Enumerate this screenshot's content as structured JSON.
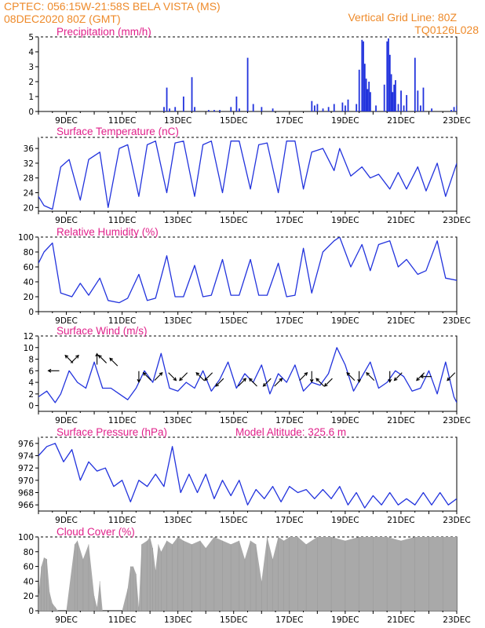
{
  "header": {
    "left_line1": "CPTEC:   056:15W-21:58S  BELA VISTA (MS)",
    "left_line2": "08DEC2020 80Z (GMT)",
    "right_line1": "Vertical Grid Line: 80Z",
    "right_line2": "TQ0126L028"
  },
  "colors": {
    "header": "#ee8a2a",
    "panel_title": "#e0208a",
    "series_line": "#2233dd",
    "cloud_fill": "#a9a9a9",
    "wind_arrow": "#000000"
  },
  "chart_data": [
    {
      "type": "bar",
      "title": "Precipitation (mm/h)",
      "x_tick_labels": [
        "9DEC",
        "11DEC",
        "13DEC",
        "15DEC",
        "17DEC",
        "19DEC",
        "21DEC",
        "23DEC"
      ],
      "x_range_days": [
        8.0,
        23.0
      ],
      "ylim": [
        0,
        5
      ],
      "y_ticks": [
        0,
        1,
        2,
        3,
        4,
        5
      ],
      "x": [
        12.5,
        12.6,
        12.7,
        12.9,
        13.2,
        13.5,
        13.6,
        14.1,
        14.3,
        14.5,
        14.9,
        15.1,
        15.2,
        15.5,
        15.7,
        16.0,
        16.4,
        17.8,
        17.9,
        18.0,
        18.2,
        18.4,
        18.6,
        18.9,
        19.0,
        19.1,
        19.4,
        19.5,
        19.6,
        19.65,
        19.7,
        19.75,
        19.8,
        19.85,
        19.9,
        20.1,
        20.4,
        20.5,
        20.55,
        20.6,
        20.65,
        20.7,
        20.75,
        20.8,
        20.9,
        21.0,
        21.1,
        21.2,
        21.5,
        21.6,
        21.7,
        21.8,
        22.1,
        22.8,
        22.9,
        23.0
      ],
      "values": [
        0.3,
        1.6,
        0.2,
        0.3,
        1.0,
        2.3,
        0.3,
        0.1,
        0.1,
        0.1,
        0.3,
        1.0,
        0.2,
        3.6,
        0.5,
        0.3,
        0.2,
        0.7,
        0.4,
        0.5,
        0.2,
        0.3,
        0.5,
        0.6,
        0.4,
        0.8,
        0.5,
        2.8,
        4.8,
        4.7,
        3.2,
        2.2,
        1.5,
        2.0,
        1.3,
        0.4,
        1.8,
        4.7,
        4.9,
        3.8,
        2.5,
        1.3,
        1.8,
        2.1,
        0.5,
        1.4,
        0.4,
        1.1,
        3.6,
        1.4,
        0.4,
        1.6,
        0.2,
        0.1,
        0.3,
        0.4
      ]
    },
    {
      "type": "line",
      "title": "Surface Temperature (nC)",
      "x_tick_labels": [
        "9DEC",
        "11DEC",
        "13DEC",
        "15DEC",
        "17DEC",
        "19DEC",
        "21DEC",
        "23DEC"
      ],
      "x_range_days": [
        8.0,
        23.0
      ],
      "ylim": [
        19,
        39
      ],
      "y_ticks": [
        20,
        24,
        28,
        32,
        36
      ],
      "x": [
        8.0,
        8.2,
        8.5,
        8.8,
        9.1,
        9.5,
        9.8,
        10.2,
        10.5,
        10.9,
        11.2,
        11.6,
        11.9,
        12.2,
        12.6,
        12.9,
        13.2,
        13.6,
        13.9,
        14.2,
        14.6,
        14.9,
        15.2,
        15.6,
        15.9,
        16.2,
        16.6,
        16.9,
        17.2,
        17.5,
        17.8,
        18.2,
        18.6,
        18.8,
        19.2,
        19.6,
        19.9,
        20.2,
        20.6,
        20.9,
        21.2,
        21.6,
        21.9,
        22.3,
        22.6,
        23.0
      ],
      "values": [
        23,
        20.5,
        19.5,
        31,
        33,
        22,
        33,
        35,
        20,
        36,
        37,
        23,
        37,
        38,
        24,
        37.5,
        38,
        23,
        37,
        38,
        24,
        38,
        38,
        25,
        37,
        37.5,
        24,
        38,
        38,
        25,
        35,
        36,
        30,
        36,
        28.5,
        31,
        28,
        29,
        25,
        29.5,
        25,
        31,
        24.5,
        32,
        23,
        32
      ]
    },
    {
      "type": "line",
      "title": "Relative Humidity (%)",
      "x_tick_labels": [
        "9DEC",
        "11DEC",
        "13DEC",
        "15DEC",
        "17DEC",
        "19DEC",
        "21DEC",
        "23DEC"
      ],
      "x_range_days": [
        8.0,
        23.0
      ],
      "ylim": [
        0,
        100
      ],
      "y_ticks": [
        0,
        20,
        40,
        60,
        80,
        100
      ],
      "x": [
        8.0,
        8.2,
        8.5,
        8.8,
        9.2,
        9.5,
        9.8,
        10.2,
        10.5,
        10.9,
        11.2,
        11.6,
        11.9,
        12.2,
        12.6,
        12.9,
        13.2,
        13.6,
        13.9,
        14.2,
        14.6,
        14.9,
        15.2,
        15.6,
        15.9,
        16.2,
        16.6,
        16.9,
        17.2,
        17.5,
        17.8,
        18.2,
        18.6,
        18.8,
        19.2,
        19.6,
        19.9,
        20.2,
        20.6,
        20.9,
        21.2,
        21.6,
        21.9,
        22.3,
        22.6,
        23.0
      ],
      "values": [
        65,
        80,
        92,
        25,
        20,
        38,
        22,
        45,
        15,
        12,
        18,
        50,
        15,
        18,
        75,
        20,
        20,
        62,
        20,
        22,
        70,
        22,
        22,
        70,
        22,
        22,
        65,
        20,
        22,
        85,
        25,
        80,
        95,
        100,
        60,
        90,
        55,
        90,
        95,
        60,
        70,
        50,
        55,
        95,
        45,
        42
      ]
    },
    {
      "type": "line",
      "title": "Surface Wind (m/s)",
      "x_tick_labels": [
        "9DEC",
        "11DEC",
        "13DEC",
        "15DEC",
        "17DEC",
        "19DEC",
        "21DEC",
        "23DEC"
      ],
      "x_range_days": [
        8.0,
        23.0
      ],
      "ylim": [
        -1,
        12
      ],
      "y_ticks": [
        0,
        2,
        4,
        6,
        8,
        10,
        12
      ],
      "x": [
        8.0,
        8.3,
        8.6,
        8.8,
        9.1,
        9.4,
        9.7,
        10.0,
        10.3,
        10.6,
        10.9,
        11.2,
        11.5,
        11.8,
        12.1,
        12.4,
        12.7,
        13.0,
        13.3,
        13.6,
        13.9,
        14.2,
        14.5,
        14.8,
        15.1,
        15.4,
        15.7,
        16.0,
        16.3,
        16.6,
        16.9,
        17.2,
        17.5,
        17.8,
        18.1,
        18.4,
        18.7,
        19.0,
        19.3,
        19.6,
        19.9,
        20.2,
        20.5,
        20.8,
        21.1,
        21.4,
        21.7,
        22.0,
        22.3,
        22.6,
        22.9,
        23.0
      ],
      "values": [
        1.5,
        2.5,
        0.5,
        2,
        6,
        4,
        3,
        7.5,
        3,
        3,
        2,
        1,
        3,
        6,
        4,
        9,
        3,
        2.5,
        4,
        3,
        6,
        2.5,
        4.5,
        7.5,
        3,
        5.5,
        4,
        7,
        2,
        5.5,
        4,
        7,
        2.5,
        4,
        3.5,
        5.5,
        10,
        7,
        2.5,
        5,
        7.5,
        3,
        4,
        6,
        5,
        2.5,
        3,
        6,
        2,
        7.5,
        1.5,
        0.5
      ],
      "arrows": [
        {
          "day": 8.55,
          "speed": 6.0,
          "dir_to": "W"
        },
        {
          "day": 9.1,
          "speed": 8.0,
          "dir_to": "NW"
        },
        {
          "day": 9.3,
          "speed": 8.0,
          "dir_to": "NE"
        },
        {
          "day": 10.1,
          "speed": 8.0,
          "dir_to": "N"
        },
        {
          "day": 10.3,
          "speed": 8.0,
          "dir_to": "NW"
        },
        {
          "day": 10.7,
          "speed": 7.5,
          "dir_to": "NW"
        },
        {
          "day": 11.6,
          "speed": 5.0,
          "dir_to": "S"
        },
        {
          "day": 11.9,
          "speed": 5.0,
          "dir_to": "NW"
        },
        {
          "day": 12.3,
          "speed": 5.0,
          "dir_to": "NE"
        },
        {
          "day": 12.8,
          "speed": 5.0,
          "dir_to": "SE"
        },
        {
          "day": 13.2,
          "speed": 5.0,
          "dir_to": "SW"
        },
        {
          "day": 13.8,
          "speed": 5.0,
          "dir_to": "NW"
        },
        {
          "day": 14.1,
          "speed": 5.0,
          "dir_to": "SW"
        },
        {
          "day": 14.5,
          "speed": 4.0,
          "dir_to": "SW"
        },
        {
          "day": 15.3,
          "speed": 4.0,
          "dir_to": "NE"
        },
        {
          "day": 15.7,
          "speed": 4.0,
          "dir_to": "NW"
        },
        {
          "day": 16.2,
          "speed": 4.0,
          "dir_to": "SW"
        },
        {
          "day": 16.6,
          "speed": 4.0,
          "dir_to": "NE"
        },
        {
          "day": 17.5,
          "speed": 5.0,
          "dir_to": "NE"
        },
        {
          "day": 17.8,
          "speed": 5.0,
          "dir_to": "S"
        },
        {
          "day": 18.1,
          "speed": 4.0,
          "dir_to": "NW"
        },
        {
          "day": 18.4,
          "speed": 4.0,
          "dir_to": "SW"
        },
        {
          "day": 19.2,
          "speed": 5.0,
          "dir_to": "NW"
        },
        {
          "day": 19.5,
          "speed": 5.0,
          "dir_to": "S"
        },
        {
          "day": 19.9,
          "speed": 5.0,
          "dir_to": "NW"
        },
        {
          "day": 20.6,
          "speed": 5.0,
          "dir_to": "S"
        },
        {
          "day": 20.9,
          "speed": 5.0,
          "dir_to": "SW"
        },
        {
          "day": 21.7,
          "speed": 5.0,
          "dir_to": "SW"
        },
        {
          "day": 21.9,
          "speed": 5.0,
          "dir_to": "W"
        },
        {
          "day": 22.8,
          "speed": 5.0,
          "dir_to": "SW"
        }
      ]
    },
    {
      "type": "line",
      "title": "Surface Pressure (hPa)",
      "annotation": "Model Altitude: 325.6  m",
      "x_tick_labels": [
        "9DEC",
        "11DEC",
        "13DEC",
        "15DEC",
        "17DEC",
        "19DEC",
        "21DEC",
        "23DEC"
      ],
      "x_range_days": [
        8.0,
        23.0
      ],
      "ylim": [
        965,
        977
      ],
      "y_ticks": [
        966,
        968,
        970,
        972,
        974,
        976
      ],
      "x": [
        8.0,
        8.3,
        8.6,
        8.9,
        9.2,
        9.5,
        9.8,
        10.1,
        10.4,
        10.7,
        11.0,
        11.3,
        11.6,
        11.9,
        12.2,
        12.5,
        12.8,
        13.1,
        13.4,
        13.7,
        14.0,
        14.3,
        14.6,
        14.9,
        15.2,
        15.5,
        15.8,
        16.1,
        16.4,
        16.7,
        17.0,
        17.3,
        17.6,
        17.9,
        18.2,
        18.5,
        18.8,
        19.1,
        19.4,
        19.7,
        20.0,
        20.3,
        20.6,
        20.9,
        21.2,
        21.5,
        21.8,
        22.1,
        22.4,
        22.7,
        23.0
      ],
      "values": [
        974,
        975.5,
        976,
        973,
        975,
        970,
        973,
        971.5,
        972,
        969,
        970,
        966.5,
        970,
        969,
        971,
        969,
        975.5,
        968,
        971,
        968,
        971,
        967,
        970,
        967.5,
        970,
        966,
        968.5,
        967,
        969,
        966.5,
        969,
        968,
        968.5,
        967,
        968.5,
        967,
        969,
        966,
        968,
        965.5,
        967.5,
        966,
        968,
        966,
        967,
        966,
        968,
        966,
        968,
        966,
        967
      ]
    },
    {
      "type": "area",
      "title": "Cloud Cover (%)",
      "x_tick_labels": [
        "9DEC",
        "11DEC",
        "13DEC",
        "15DEC",
        "17DEC",
        "19DEC",
        "21DEC",
        "23DEC"
      ],
      "x_range_days": [
        8.0,
        23.0
      ],
      "ylim": [
        0,
        100
      ],
      "y_ticks": [
        0,
        20,
        40,
        60,
        80,
        100
      ],
      "x": [
        8.0,
        8.1,
        8.2,
        8.3,
        8.4,
        8.5,
        8.6,
        8.7,
        8.8,
        8.9,
        9.0,
        9.3,
        9.4,
        9.6,
        9.8,
        10.0,
        10.1,
        10.2,
        10.3,
        10.5,
        10.8,
        11.0,
        11.2,
        11.3,
        11.4,
        11.5,
        11.6,
        11.7,
        11.9,
        12.0,
        12.1,
        12.2,
        12.3,
        12.4,
        12.6,
        12.8,
        13.0,
        13.2,
        13.5,
        13.8,
        14.0,
        14.3,
        14.6,
        14.9,
        15.2,
        15.4,
        15.6,
        15.8,
        16.0,
        16.2,
        16.4,
        16.6,
        16.8,
        17.0,
        17.3,
        17.6,
        18.0,
        18.5,
        19.0,
        19.5,
        20.0,
        20.5,
        21.0,
        21.5,
        22.0,
        22.5,
        23.0
      ],
      "values": [
        20,
        60,
        72,
        70,
        25,
        10,
        5,
        0,
        0,
        0,
        0,
        90,
        95,
        70,
        90,
        20,
        5,
        40,
        0,
        0,
        0,
        0,
        30,
        60,
        60,
        50,
        5,
        90,
        95,
        100,
        85,
        55,
        90,
        80,
        95,
        90,
        100,
        95,
        90,
        95,
        85,
        100,
        95,
        90,
        95,
        70,
        95,
        90,
        40,
        100,
        70,
        100,
        95,
        100,
        100,
        90,
        100,
        100,
        95,
        100,
        100,
        100,
        95,
        100,
        100,
        100,
        100
      ]
    }
  ]
}
